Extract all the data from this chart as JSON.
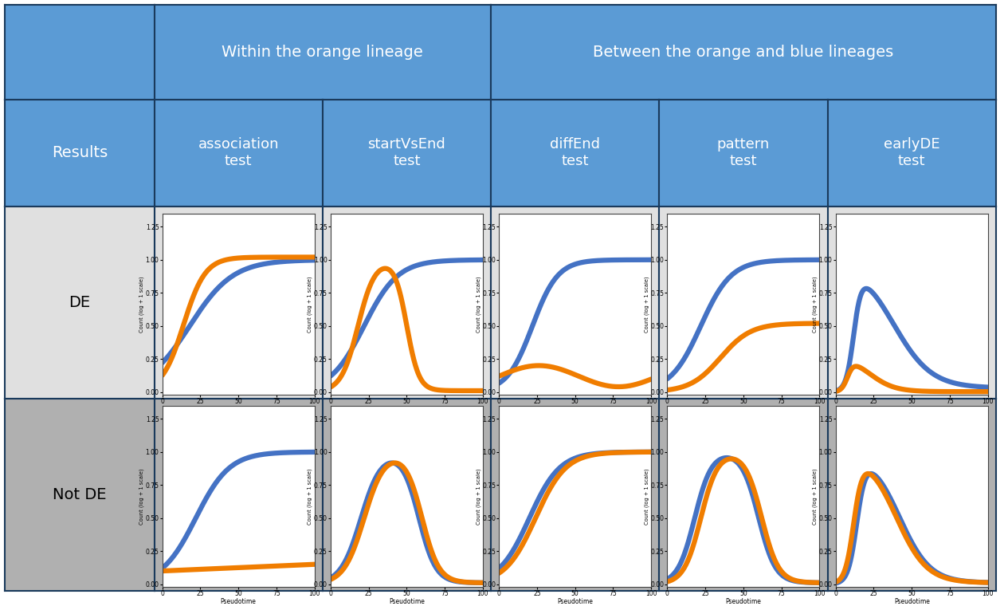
{
  "header_bg": "#5b9bd5",
  "de_row_bg": "#e0e0e0",
  "not_de_row_bg": "#b0b0b0",
  "blue_color": "#4472c4",
  "orange_color": "#f07d00",
  "col1_header": "Within the orange lineage",
  "col2_header": "Between the orange and blue lineages",
  "row_label1": "Results",
  "row_label2": "DE",
  "row_label3": "Not DE",
  "col_labels": [
    "association\ntest",
    "startVsEnd\ntest",
    "diffEnd\ntest",
    "pattern\ntest",
    "earlyDE\ntest"
  ],
  "ylabel": "Count (log + 1 scale)",
  "xlabel": "Pseudotime",
  "yticks": [
    0.0,
    0.25,
    0.5,
    0.75,
    1.0,
    1.25
  ],
  "xticks": [
    0,
    25,
    50,
    75,
    100
  ],
  "border_color": "#1a3a5c",
  "lw": 4.5
}
